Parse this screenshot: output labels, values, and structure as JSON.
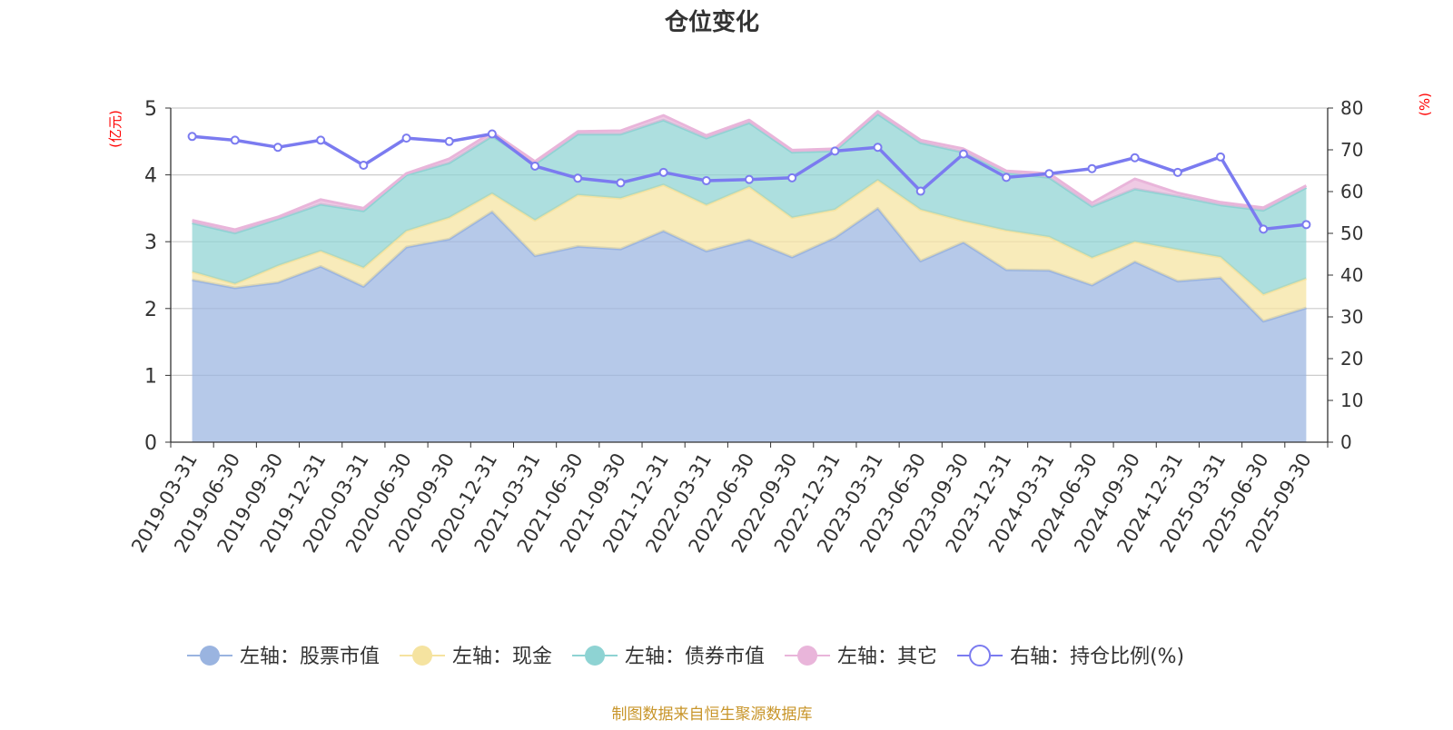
{
  "chart_data": {
    "type": "stacked-area-with-line",
    "title": "仓位变化",
    "left_axis": {
      "label": "(亿元)",
      "range": [
        0,
        5
      ],
      "ticks": [
        0,
        1,
        2,
        3,
        4,
        5
      ]
    },
    "right_axis": {
      "label": "(%)",
      "range": [
        0,
        80
      ],
      "ticks": [
        0,
        10,
        20,
        30,
        40,
        50,
        60,
        70,
        80
      ]
    },
    "categories": [
      "2019-03-31",
      "2019-06-30",
      "2019-09-30",
      "2019-12-31",
      "2020-03-31",
      "2020-06-30",
      "2020-09-30",
      "2020-12-31",
      "2021-03-31",
      "2021-06-30",
      "2021-09-30",
      "2021-12-31",
      "2022-03-31",
      "2022-06-30",
      "2022-09-30",
      "2022-12-31",
      "2023-03-31",
      "2023-06-30",
      "2023-09-30",
      "2023-12-31",
      "2024-03-31",
      "2024-06-30",
      "2024-09-30",
      "2024-12-31",
      "2025-03-31",
      "2025-06-30",
      "2025-09-30"
    ],
    "series": [
      {
        "name": "左轴：股票市值",
        "axis": "left",
        "color": "#9ab4e0",
        "values": [
          2.43,
          2.31,
          2.39,
          2.63,
          2.33,
          2.92,
          3.04,
          3.45,
          2.79,
          2.93,
          2.89,
          3.16,
          2.86,
          3.03,
          2.77,
          3.06,
          3.5,
          2.71,
          2.99,
          2.58,
          2.57,
          2.35,
          2.7,
          2.41,
          2.46,
          1.81,
          2.01
        ]
      },
      {
        "name": "左轴：现金",
        "axis": "left",
        "color": "#f5e3a0",
        "values": [
          0.12,
          0.06,
          0.25,
          0.23,
          0.28,
          0.24,
          0.32,
          0.27,
          0.53,
          0.77,
          0.76,
          0.69,
          0.69,
          0.79,
          0.59,
          0.42,
          0.42,
          0.77,
          0.32,
          0.59,
          0.5,
          0.41,
          0.3,
          0.47,
          0.31,
          0.4,
          0.44
        ]
      },
      {
        "name": "左轴：债券市值",
        "axis": "left",
        "color": "#8ed3d3",
        "values": [
          0.73,
          0.76,
          0.7,
          0.7,
          0.85,
          0.84,
          0.82,
          0.86,
          0.84,
          0.91,
          0.96,
          0.97,
          1.0,
          0.96,
          0.98,
          0.88,
          0.99,
          1.0,
          1.03,
          0.86,
          0.89,
          0.77,
          0.79,
          0.8,
          0.78,
          1.26,
          1.36
        ]
      },
      {
        "name": "左轴：其它",
        "axis": "left",
        "color": "#e9b5da",
        "values": [
          0.04,
          0.05,
          0.03,
          0.07,
          0.04,
          0.02,
          0.06,
          0.06,
          0.04,
          0.04,
          0.05,
          0.07,
          0.04,
          0.04,
          0.03,
          0.03,
          0.04,
          0.04,
          0.05,
          0.03,
          0.06,
          0.05,
          0.15,
          0.05,
          0.04,
          0.04,
          0.03
        ]
      },
      {
        "name": "右轴：持仓比例(%)",
        "axis": "right",
        "type": "line",
        "color": "#7b7bf0",
        "values": [
          73.2,
          72.3,
          70.6,
          72.3,
          66.3,
          72.8,
          72.0,
          73.8,
          66.1,
          63.2,
          62.1,
          64.6,
          62.6,
          62.9,
          63.3,
          69.7,
          70.6,
          60.1,
          69.0,
          63.4,
          64.3,
          65.5,
          68.1,
          64.6,
          68.3,
          51.0,
          52.1
        ]
      }
    ],
    "legend_position": "bottom-center",
    "grid": true
  },
  "footer": {
    "source": "制图数据来自恒生聚源数据库"
  }
}
